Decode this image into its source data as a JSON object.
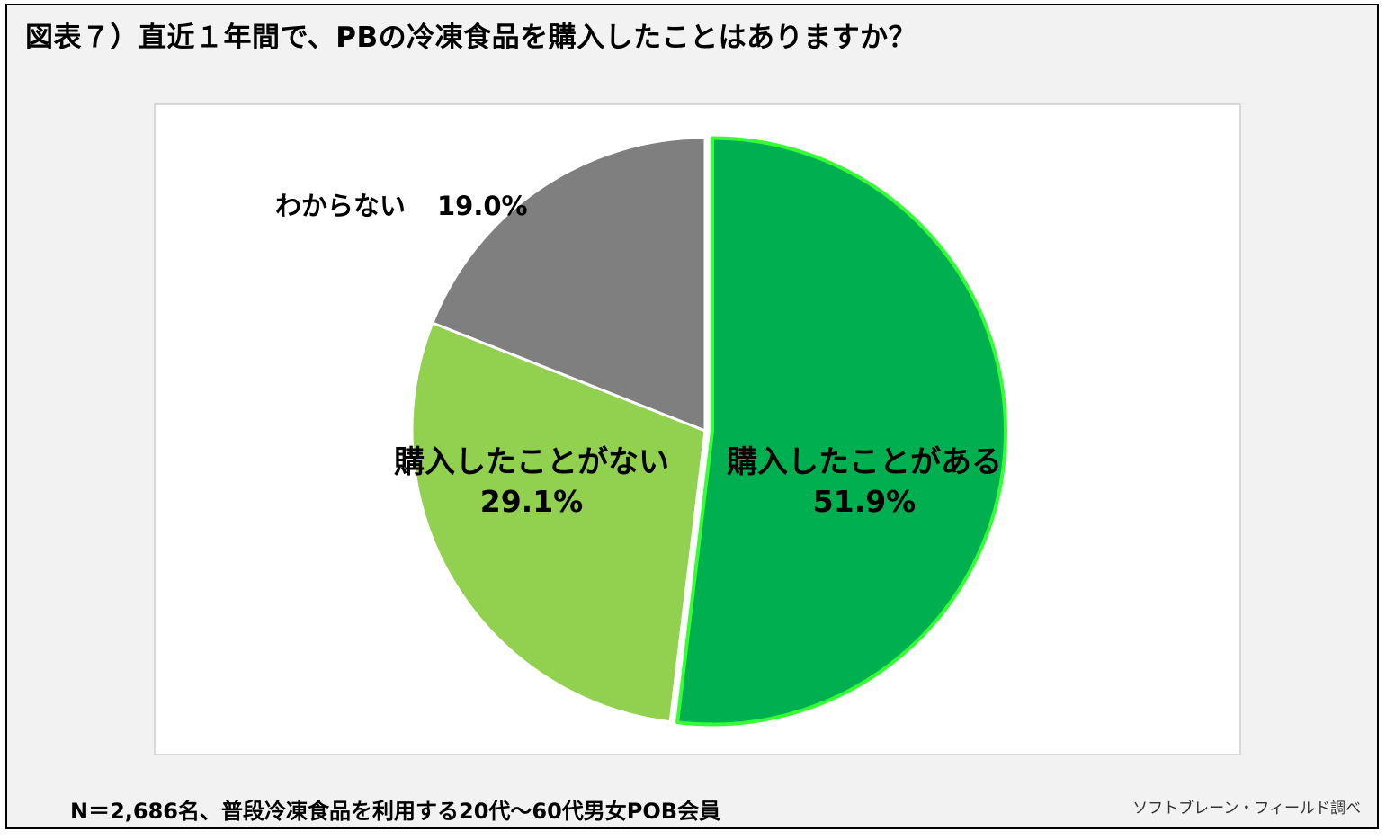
{
  "title": "図表７）直近１年間で、PBの冷凍食品を購入したことはありますか？",
  "footnote": "N＝2,686名、普段冷凍食品を利用する20代〜60代男女POB会員",
  "source": "ソフトブレーン・フィールド調べ",
  "chart_data": {
    "type": "pie",
    "slices": [
      {
        "label": "購入したことがある",
        "value": 51.9,
        "value_label": "51.9%",
        "color": "#00b050",
        "outline": "#33ff33",
        "exploded": true
      },
      {
        "label": "購入したことがない",
        "value": 29.1,
        "value_label": "29.1%",
        "color": "#92d050",
        "outline": "#ffffff",
        "exploded": false
      },
      {
        "label": "わからない",
        "value": 19.0,
        "value_label": "19.0%",
        "color": "#7f7f7f",
        "outline": "#ffffff",
        "exploded": false
      }
    ],
    "start_angle": "12 o'clock",
    "direction": "clockwise",
    "legend": "none"
  }
}
